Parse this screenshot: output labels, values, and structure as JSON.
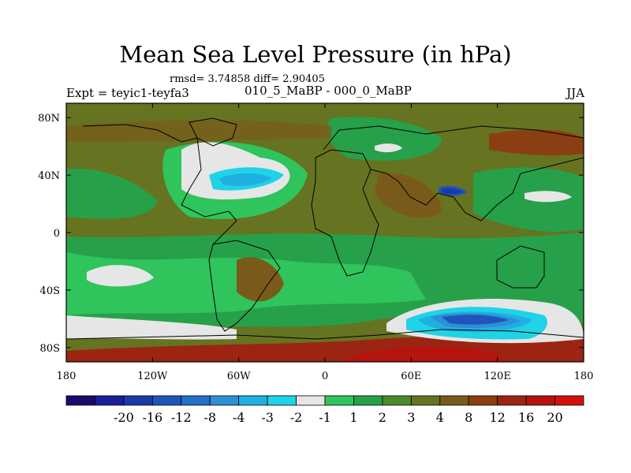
{
  "title": "Mean Sea Level Pressure (in hPa)",
  "stats": "rmsd= 3.74858 diff= 2.90405",
  "subtitle_left": "Expt = teyic1-teyfa3",
  "subtitle_center": "010_5_MaBP - 000_0_MaBP",
  "subtitle_right": "JJA",
  "chart_data": {
    "type": "heatmap",
    "variable": "Mean sea level pressure difference",
    "units": "hPa",
    "season": "JJA",
    "xlim": [
      -180,
      180
    ],
    "ylim": [
      -90,
      90
    ],
    "x_ticks": [
      {
        "value": -180,
        "label": "180"
      },
      {
        "value": -120,
        "label": "120W"
      },
      {
        "value": -60,
        "label": "60W"
      },
      {
        "value": 0,
        "label": "0"
      },
      {
        "value": 60,
        "label": "60E"
      },
      {
        "value": 120,
        "label": "120E"
      },
      {
        "value": 180,
        "label": "180"
      }
    ],
    "y_ticks": [
      {
        "value": 80,
        "label": "80N"
      },
      {
        "value": 40,
        "label": "40N"
      },
      {
        "value": 0,
        "label": "0"
      },
      {
        "value": -40,
        "label": "40S"
      },
      {
        "value": -80,
        "label": "80S"
      }
    ],
    "colorbar": {
      "colors": [
        "#1a0a6e",
        "#1c1d9c",
        "#1a3aa8",
        "#1f55b9",
        "#2270c8",
        "#2c8fd8",
        "#1fb0e0",
        "#1fd3e6",
        "#e6e6e6",
        "#2fc45c",
        "#27a04a",
        "#4a8a2a",
        "#667320",
        "#7a5a1a",
        "#8a3f13",
        "#9c2413",
        "#b5140f",
        "#d4100f"
      ],
      "labels": [
        "-20",
        "-16",
        "-12",
        "-8",
        "-4",
        "-3",
        "-2",
        "-1",
        "1",
        "2",
        "3",
        "4",
        "8",
        "12",
        "16",
        "20"
      ]
    }
  }
}
